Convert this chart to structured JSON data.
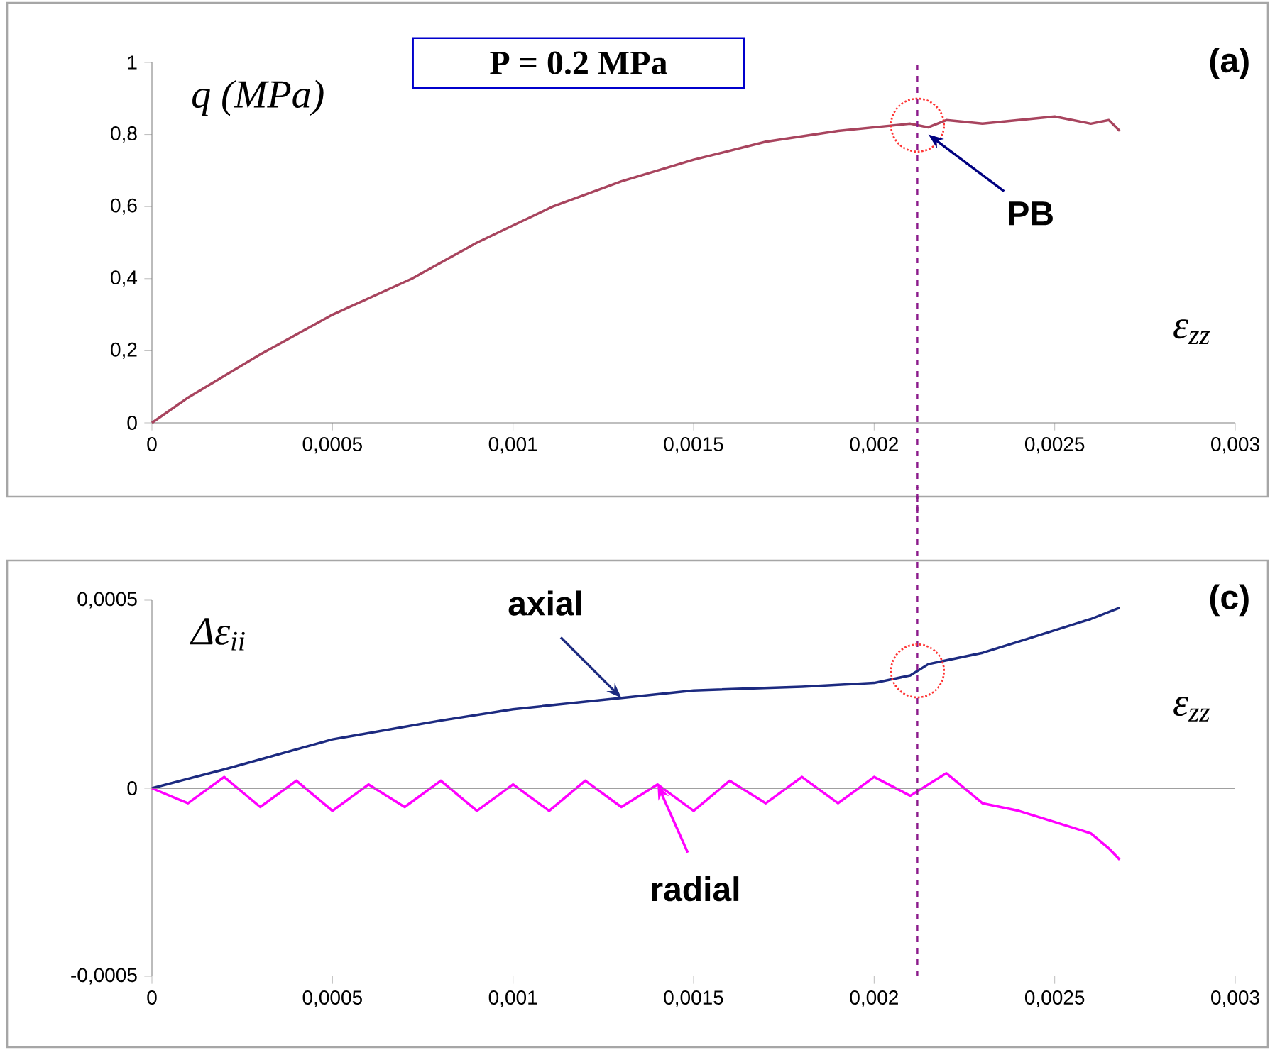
{
  "chart_data": [
    {
      "type": "line",
      "ylabel": "q (MPa)",
      "xlabel": "ε$_{zz}$",
      "annotations": [
        "(a)",
        "**P = 0.2 MPa**",
        {
          "text": "PB",
          "x": 0.00215,
          "y": 0.8
        }
      ],
      "series": [
        {
          "color": "#a8445e",
          "x": [
            0,
            0.0001,
            0.0002,
            0.0003,
            0.0005,
            0.00072,
            0.0009,
            0.00111,
            0.0013,
            0.0015,
            0.0017,
            0.0019,
            0.0021,
            0.00215,
            0.0022,
            0.0023,
            0.0024,
            0.0025,
            0.0026,
            0.00265,
            0.00268
          ],
          "values": [
            0,
            0.07,
            0.13,
            0.19,
            0.3,
            0.4,
            0.5,
            0.6,
            0.67,
            0.73,
            0.78,
            0.81,
            0.83,
            0.82,
            0.84,
            0.83,
            0.84,
            0.85,
            0.83,
            0.84,
            0.81
          ]
        }
      ],
      "xlim": [
        0,
        0.003
      ],
      "ylim": [
        0,
        1
      ],
      "xticks": [
        0,
        {
          "value": 0.0005,
          "label": "0,0005"
        },
        {
          "value": 0.001,
          "label": "0,001"
        },
        {
          "value": 0.0015,
          "label": "0,0015"
        },
        {
          "value": 0.002,
          "label": "0,002"
        },
        {
          "value": 0.0025,
          "label": "0,0025"
        },
        {
          "value": 0.003,
          "label": "0,003"
        }
      ],
      "yticks": [
        0,
        {
          "value": 0.2,
          "label": "0,2"
        },
        {
          "value": 0.4,
          "label": "0,4"
        },
        {
          "value": 0.6,
          "label": "0,6"
        },
        {
          "value": 0.8,
          "label": "0,8"
        },
        1
      ],
      "ref_lines": [
        {
          "axis": "x",
          "value": 0.00212,
          "color": "#8b1a8b",
          "line_style": "dashed"
        }
      ],
      "grid": false
    },
    {
      "type": "line",
      "ylabel": "Δε$_{ii}$",
      "xlabel": "ε$_{zz}$",
      "annotations": [
        "(c)"
      ],
      "series": [
        {
          "name": "axial",
          "color": "#1c2a80",
          "x": [
            0,
            0.0002,
            0.0005,
            0.0008,
            0.001,
            0.0013,
            0.0015,
            0.0018,
            0.002,
            0.0021,
            0.00215,
            0.0022,
            0.0023,
            0.0024,
            0.0025,
            0.0026,
            0.00268
          ],
          "values": [
            0,
            5e-05,
            0.00013,
            0.00018,
            0.00021,
            0.00024,
            0.00026,
            0.00027,
            0.00028,
            0.0003,
            0.00033,
            0.00034,
            0.00036,
            0.00039,
            0.00042,
            0.00045,
            0.00048
          ]
        },
        {
          "name": "radial",
          "color": "#ff00ff",
          "x": [
            0,
            0.0001,
            0.0002,
            0.0003,
            0.0004,
            0.0005,
            0.0006,
            0.0007,
            0.0008,
            0.0009,
            0.001,
            0.0011,
            0.0012,
            0.0013,
            0.0014,
            0.0015,
            0.0016,
            0.0017,
            0.0018,
            0.0019,
            0.002,
            0.0021,
            0.0022,
            0.0023,
            0.0024,
            0.0025,
            0.0026,
            0.00265,
            0.00268
          ],
          "values": [
            0,
            -4e-05,
            3e-05,
            -5e-05,
            2e-05,
            -6e-05,
            1e-05,
            -5e-05,
            2e-05,
            -6e-05,
            1e-05,
            -6e-05,
            2e-05,
            -5e-05,
            1e-05,
            -6e-05,
            2e-05,
            -4e-05,
            3e-05,
            -4e-05,
            3e-05,
            -2e-05,
            4e-05,
            -4e-05,
            -6e-05,
            -9e-05,
            -0.00012,
            -0.00016,
            -0.00019
          ]
        }
      ],
      "xlim": [
        0,
        0.003
      ],
      "ylim": [
        -0.0005,
        0.0005
      ],
      "xticks": [
        0,
        {
          "value": 0.0005,
          "label": "0,0005"
        },
        {
          "value": 0.001,
          "label": "0,001"
        },
        {
          "value": 0.0015,
          "label": "0,0015"
        },
        {
          "value": 0.002,
          "label": "0,002"
        },
        {
          "value": 0.0025,
          "label": "0,0025"
        },
        {
          "value": 0.003,
          "label": "0,003"
        }
      ],
      "yticks": [
        {
          "value": -0.0005,
          "label": "-0,0005"
        },
        0,
        {
          "value": 0.0005,
          "label": "0,0005"
        }
      ],
      "ref_lines": [
        {
          "axis": "x",
          "value": 0.00212,
          "color": "#8b1a8b",
          "line_style": "dashed"
        },
        {
          "axis": "y",
          "value": 0,
          "color": "#808080",
          "line_style": "solid"
        }
      ],
      "grid": false
    }
  ]
}
